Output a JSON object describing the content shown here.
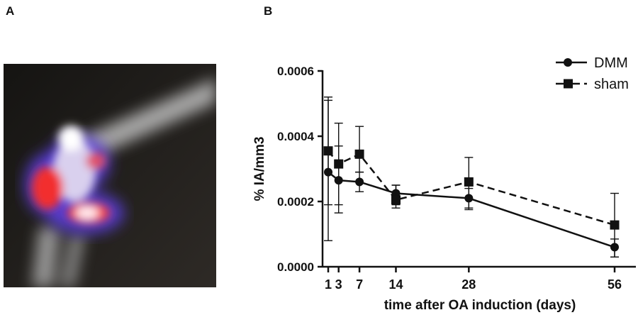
{
  "panels": {
    "a_label": "A",
    "b_label": "B"
  },
  "image_panel": {
    "description_icon": "joint-scintigraphy-overlay-image"
  },
  "chart_data": {
    "type": "line",
    "title": "",
    "xlabel": "time after OA induction (days)",
    "ylabel": "% IA/mm3",
    "x": [
      1,
      3,
      7,
      14,
      28,
      56
    ],
    "x_ticks": [
      "1",
      "3",
      "7",
      "14",
      "28",
      "56"
    ],
    "y_ticks": [
      "0.0000",
      "0.0002",
      "0.0004",
      "0.0006"
    ],
    "y_tick_values": [
      0,
      0.0002,
      0.0004,
      0.0006
    ],
    "ylim": [
      0,
      0.0006
    ],
    "xlim": [
      1,
      56
    ],
    "legend_position": "top-right",
    "grid": false,
    "series": [
      {
        "name": "DMM",
        "marker": "circle",
        "line": "solid",
        "values": [
          0.00029,
          0.000265,
          0.00026,
          0.000225,
          0.00021,
          6e-05
        ],
        "err_low": [
          8e-05,
          0.00019,
          0.00023,
          0.00019,
          0.000175,
          3e-05
        ],
        "err_high": [
          0.00051,
          0.00037,
          0.00029,
          0.00025,
          0.00024,
          8.5e-05
        ]
      },
      {
        "name": "sham",
        "marker": "square",
        "line": "dashed",
        "values": [
          0.000355,
          0.000315,
          0.000345,
          0.000205,
          0.00026,
          0.000128
        ],
        "err_low": [
          0.00019,
          0.000165,
          0.00029,
          0.00018,
          0.00018,
          3e-05
        ],
        "err_high": [
          0.00052,
          0.00044,
          0.00043,
          0.00025,
          0.000335,
          0.000225
        ]
      }
    ]
  }
}
